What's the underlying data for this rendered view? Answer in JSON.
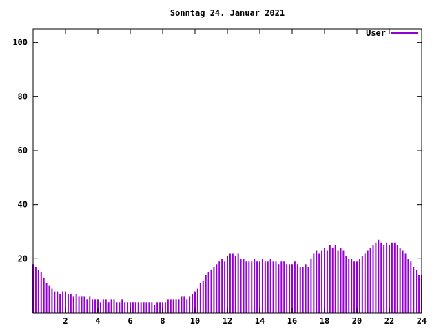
{
  "title": "Sonntag 24. Januar 2021",
  "legend": {
    "label": "User"
  },
  "chart_data": {
    "type": "bar",
    "title": "Sonntag 24. Januar 2021",
    "xlabel": "",
    "ylabel": "",
    "xlim": [
      0,
      24
    ],
    "ylim": [
      0,
      105
    ],
    "x_ticks": [
      2,
      4,
      6,
      8,
      10,
      12,
      14,
      16,
      18,
      20,
      22,
      24
    ],
    "y_ticks": [
      20,
      40,
      60,
      80,
      100
    ],
    "grid": false,
    "legend_position": "top-right",
    "sample_interval_minutes": 10,
    "x_start_hour": 0,
    "series": [
      {
        "name": "User",
        "color": "#9400d3",
        "values": [
          18,
          17,
          16,
          15,
          13,
          11,
          10,
          9,
          8,
          8,
          7,
          8,
          8,
          7,
          7,
          6,
          7,
          6,
          6,
          6,
          5,
          6,
          5,
          5,
          5,
          4,
          5,
          5,
          4,
          5,
          5,
          4,
          4,
          5,
          4,
          4,
          4,
          4,
          4,
          4,
          4,
          4,
          4,
          4,
          4,
          3,
          4,
          4,
          4,
          4,
          5,
          5,
          5,
          5,
          5,
          6,
          6,
          5,
          6,
          7,
          8,
          9,
          11,
          12,
          14,
          15,
          16,
          17,
          18,
          19,
          20,
          19,
          21,
          22,
          22,
          21,
          22,
          20,
          20,
          19,
          19,
          19,
          20,
          19,
          19,
          20,
          19,
          19,
          20,
          19,
          19,
          18,
          19,
          19,
          18,
          18,
          18,
          19,
          18,
          17,
          17,
          18,
          17,
          20,
          22,
          23,
          22,
          23,
          24,
          23,
          25,
          24,
          25,
          23,
          24,
          23,
          21,
          20,
          20,
          19,
          19,
          20,
          21,
          22,
          23,
          24,
          25,
          26,
          27,
          26,
          25,
          26,
          25,
          26,
          26,
          25,
          24,
          23,
          22,
          20,
          19,
          17,
          16,
          14,
          14
        ]
      }
    ]
  }
}
